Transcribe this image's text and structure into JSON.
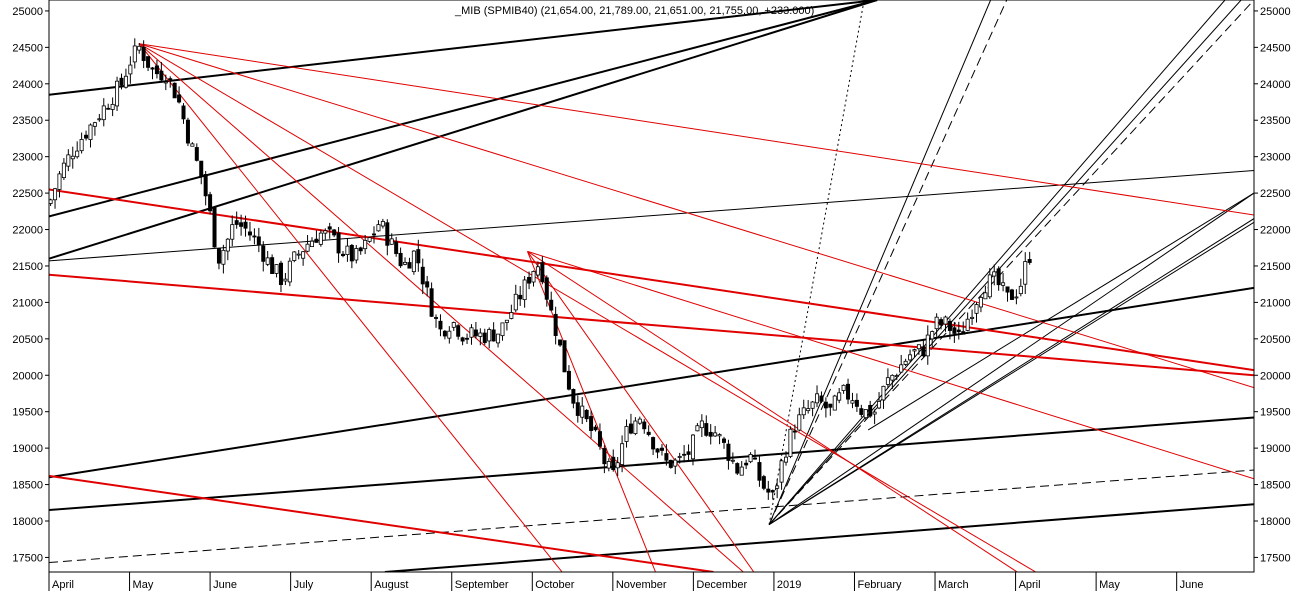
{
  "header": {
    "title": "_MIB (SPMIB40) (21,654.00, 21,789.00, 21,651.00, 21,755.00, +233.000)"
  },
  "chart_data": {
    "type": "candlestick",
    "title": "_MIB (SPMIB40) (21,654.00, 21,789.00, 21,651.00, 21,755.00, +233.000)",
    "ylim": [
      17300,
      25150
    ],
    "xlim": [
      0,
      14.96
    ],
    "y_ticks": [
      17500,
      18000,
      18500,
      19000,
      19500,
      20000,
      20500,
      21000,
      21500,
      22000,
      22500,
      23000,
      23500,
      24000,
      24500,
      25000
    ],
    "y_tick_labels": [
      "17500",
      "18000",
      "18500",
      "19000",
      "19500",
      "20000",
      "20500",
      "21000",
      "21500",
      "22000",
      "22500",
      "23000",
      "23500",
      "24000",
      "24500",
      "25000"
    ],
    "x_ticks": [
      0,
      1,
      2,
      3,
      4,
      5,
      6,
      7,
      8,
      9,
      10,
      11,
      12,
      13,
      14
    ],
    "x_tick_labels": [
      "April",
      "May",
      "June",
      "July",
      "August",
      "September",
      "October",
      "November",
      "December",
      "2019",
      "February",
      "March",
      "April",
      "May",
      "June"
    ],
    "grid": false,
    "axis_labels_both_sides": true,
    "colors": {
      "candle": "#000000",
      "trend_black": "#000000",
      "trend_red": "#e00000",
      "background": "#ffffff"
    },
    "price_path": [
      [
        0.0,
        22350
      ],
      [
        0.15,
        22800
      ],
      [
        0.3,
        23100
      ],
      [
        0.5,
        23400
      ],
      [
        0.7,
        23700
      ],
      [
        0.9,
        24000
      ],
      [
        1.0,
        24300
      ],
      [
        1.12,
        24500
      ],
      [
        1.3,
        24150
      ],
      [
        1.45,
        24150
      ],
      [
        1.6,
        23800
      ],
      [
        1.75,
        23200
      ],
      [
        1.9,
        22700
      ],
      [
        2.0,
        22200
      ],
      [
        2.1,
        21600
      ],
      [
        2.2,
        21800
      ],
      [
        2.3,
        22100
      ],
      [
        2.45,
        22000
      ],
      [
        2.6,
        21800
      ],
      [
        2.75,
        21500
      ],
      [
        2.9,
        21300
      ],
      [
        3.05,
        21600
      ],
      [
        3.2,
        21800
      ],
      [
        3.35,
        21950
      ],
      [
        3.5,
        21900
      ],
      [
        3.65,
        21700
      ],
      [
        3.8,
        21600
      ],
      [
        3.95,
        21800
      ],
      [
        4.1,
        22100
      ],
      [
        4.25,
        21800
      ],
      [
        4.4,
        21500
      ],
      [
        4.55,
        21700
      ],
      [
        4.7,
        21100
      ],
      [
        4.85,
        20600
      ],
      [
        5.0,
        20750
      ],
      [
        5.15,
        20550
      ],
      [
        5.3,
        20550
      ],
      [
        5.45,
        20550
      ],
      [
        5.6,
        20600
      ],
      [
        5.75,
        20900
      ],
      [
        5.9,
        21200
      ],
      [
        6.0,
        21450
      ],
      [
        6.1,
        21550
      ],
      [
        6.2,
        21000
      ],
      [
        6.3,
        20600
      ],
      [
        6.4,
        20100
      ],
      [
        6.5,
        19700
      ],
      [
        6.6,
        19500
      ],
      [
        6.7,
        19300
      ],
      [
        6.8,
        19100
      ],
      [
        6.9,
        18800
      ],
      [
        7.0,
        18600
      ],
      [
        7.1,
        19000
      ],
      [
        7.2,
        19300
      ],
      [
        7.35,
        19450
      ],
      [
        7.5,
        19100
      ],
      [
        7.65,
        18800
      ],
      [
        7.8,
        18800
      ],
      [
        7.95,
        18950
      ],
      [
        8.1,
        19300
      ],
      [
        8.25,
        19250
      ],
      [
        8.4,
        19000
      ],
      [
        8.55,
        18700
      ],
      [
        8.7,
        18900
      ],
      [
        8.85,
        18500
      ],
      [
        9.0,
        18300
      ],
      [
        9.05,
        18600
      ],
      [
        9.15,
        19000
      ],
      [
        9.25,
        19300
      ],
      [
        9.4,
        19500
      ],
      [
        9.55,
        19650
      ],
      [
        9.7,
        19500
      ],
      [
        9.85,
        19750
      ],
      [
        10.0,
        19700
      ],
      [
        10.1,
        19500
      ],
      [
        10.25,
        19500
      ],
      [
        10.4,
        19900
      ],
      [
        10.55,
        20100
      ],
      [
        10.7,
        20300
      ],
      [
        10.85,
        20350
      ],
      [
        11.0,
        20700
      ],
      [
        11.15,
        20700
      ],
      [
        11.3,
        20500
      ],
      [
        11.45,
        20900
      ],
      [
        11.6,
        21250
      ],
      [
        11.75,
        21300
      ],
      [
        11.9,
        21050
      ],
      [
        12.05,
        21200
      ],
      [
        12.15,
        21600
      ],
      [
        12.22,
        21750
      ]
    ],
    "trend_lines": [
      {
        "color": "black",
        "width": 2,
        "style": "solid",
        "from": [
          0.0,
          23850
        ],
        "to": [
          10.28,
          25150
        ]
      },
      {
        "color": "black",
        "width": 2,
        "style": "solid",
        "from": [
          0.0,
          22180
        ],
        "to": [
          10.28,
          25150
        ]
      },
      {
        "color": "black",
        "width": 2,
        "style": "solid",
        "from": [
          0.0,
          21600
        ],
        "to": [
          10.28,
          25150
        ]
      },
      {
        "color": "black",
        "width": 1,
        "style": "solid",
        "from": [
          0.0,
          21570
        ],
        "to": [
          14.96,
          22810
        ]
      },
      {
        "color": "black",
        "width": 2,
        "style": "solid",
        "from": [
          0.0,
          18600
        ],
        "to": [
          14.96,
          21200
        ]
      },
      {
        "color": "black",
        "width": 2,
        "style": "solid",
        "from": [
          0.0,
          18150
        ],
        "to": [
          14.96,
          19420
        ]
      },
      {
        "color": "black",
        "width": 1,
        "style": "dashed",
        "from": [
          0.0,
          17430
        ],
        "to": [
          14.96,
          18700
        ]
      },
      {
        "color": "black",
        "width": 2,
        "style": "solid",
        "from": [
          4.17,
          17300
        ],
        "to": [
          14.96,
          18230
        ]
      },
      {
        "color": "black",
        "width": 1,
        "style": "solid",
        "from": [
          8.94,
          17950
        ],
        "to": [
          11.69,
          25150
        ]
      },
      {
        "color": "black",
        "width": 1,
        "style": "dashed",
        "from": [
          8.94,
          17950
        ],
        "to": [
          11.89,
          25150
        ]
      },
      {
        "color": "black",
        "width": 1,
        "style": "dotted",
        "from": [
          8.94,
          17950
        ],
        "to": [
          10.12,
          25150
        ]
      },
      {
        "color": "black",
        "width": 1,
        "style": "solid",
        "from": [
          8.94,
          17950
        ],
        "to": [
          14.6,
          25150
        ]
      },
      {
        "color": "black",
        "width": 1,
        "style": "solid",
        "from": [
          8.94,
          17950
        ],
        "to": [
          14.8,
          25150
        ]
      },
      {
        "color": "black",
        "width": 1,
        "style": "dashed",
        "from": [
          8.94,
          17950
        ],
        "to": [
          14.96,
          25150
        ]
      },
      {
        "color": "black",
        "width": 1,
        "style": "solid",
        "from": [
          8.94,
          17950
        ],
        "to": [
          14.96,
          22500
        ]
      },
      {
        "color": "black",
        "width": 1,
        "style": "solid",
        "from": [
          8.94,
          17950
        ],
        "to": [
          14.96,
          22150
        ]
      },
      {
        "color": "black",
        "width": 1,
        "style": "solid",
        "from": [
          8.94,
          17950
        ],
        "to": [
          14.96,
          22100
        ]
      },
      {
        "color": "black",
        "width": 1,
        "style": "solid",
        "from": [
          10.17,
          19250
        ],
        "to": [
          14.96,
          22500
        ]
      },
      {
        "color": "red",
        "width": 2,
        "style": "solid",
        "from": [
          0.0,
          22550
        ],
        "to": [
          14.96,
          20070
        ]
      },
      {
        "color": "red",
        "width": 2,
        "style": "solid",
        "from": [
          0.0,
          21380
        ],
        "to": [
          14.96,
          20000
        ]
      },
      {
        "color": "red",
        "width": 2,
        "style": "solid",
        "from": [
          0.0,
          18620
        ],
        "to": [
          8.25,
          17300
        ]
      },
      {
        "color": "red",
        "width": 1,
        "style": "solid",
        "from": [
          1.12,
          24550
        ],
        "to": [
          14.96,
          22200
        ]
      },
      {
        "color": "red",
        "width": 1,
        "style": "solid",
        "from": [
          1.12,
          24550
        ],
        "to": [
          14.96,
          19830
        ]
      },
      {
        "color": "red",
        "width": 1,
        "style": "solid",
        "from": [
          1.12,
          24550
        ],
        "to": [
          6.37,
          17300
        ]
      },
      {
        "color": "red",
        "width": 1,
        "style": "solid",
        "from": [
          1.12,
          24550
        ],
        "to": [
          8.62,
          17300
        ]
      },
      {
        "color": "red",
        "width": 1,
        "style": "solid",
        "from": [
          1.12,
          24550
        ],
        "to": [
          12.25,
          17300
        ]
      },
      {
        "color": "red",
        "width": 1,
        "style": "solid",
        "from": [
          5.94,
          21700
        ],
        "to": [
          14.96,
          18580
        ]
      },
      {
        "color": "red",
        "width": 1,
        "style": "solid",
        "from": [
          5.94,
          21700
        ],
        "to": [
          7.53,
          17300
        ]
      },
      {
        "color": "red",
        "width": 1,
        "style": "solid",
        "from": [
          5.94,
          21700
        ],
        "to": [
          8.75,
          17300
        ]
      },
      {
        "color": "red",
        "width": 1,
        "style": "solid",
        "from": [
          5.94,
          21700
        ],
        "to": [
          12.02,
          17300
        ]
      }
    ]
  }
}
